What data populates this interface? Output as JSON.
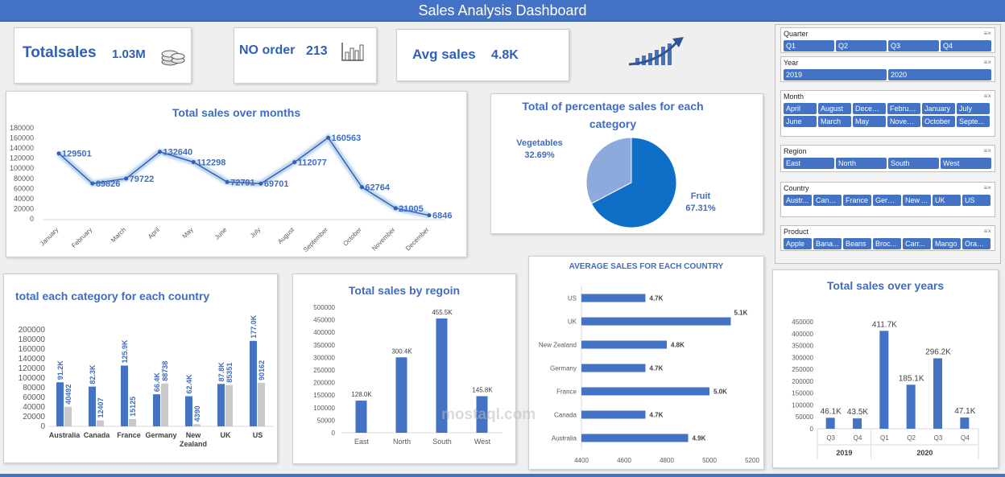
{
  "dashboard_title": "Sales Analysis Dashboard",
  "kpis": {
    "total_sales_label": "Totalsales",
    "total_sales_value": "1.03M",
    "orders_label": "NO order",
    "orders_value": "213",
    "avg_label": "Avg sales",
    "avg_value": "4.8K"
  },
  "icons": {
    "coins": "coins-icon",
    "bar_chart": "bar-chart-icon",
    "growth": "growth-arrow-icon"
  },
  "slicers": [
    {
      "title": "Quarter",
      "items": [
        "Q1",
        "Q2",
        "Q3",
        "Q4"
      ]
    },
    {
      "title": "Year",
      "items": [
        "2019",
        "2020"
      ]
    },
    {
      "title": "Month",
      "items": [
        "April",
        "August",
        "Decem...",
        "February",
        "January",
        "July",
        "June",
        "March",
        "May",
        "Novem...",
        "October",
        "Septe..."
      ]
    },
    {
      "title": "Region",
      "items": [
        "East",
        "North",
        "South",
        "West"
      ]
    },
    {
      "title": "Country",
      "items": [
        "Austr...",
        "Cana...",
        "France",
        "Germ...",
        "New ...",
        "UK",
        "US"
      ]
    },
    {
      "title": "Product",
      "items": [
        "Apple",
        "Bana...",
        "Beans",
        "Broc...",
        "Carr...",
        "Mango",
        "Orange"
      ]
    }
  ],
  "watermark": "mostaql.com",
  "chart_data": [
    {
      "id": "months",
      "type": "line",
      "title": "Total sales  over months",
      "categories": [
        "January",
        "February",
        "March",
        "April",
        "May",
        "June",
        "July",
        "August",
        "September",
        "October",
        "November",
        "December"
      ],
      "values": [
        129501,
        69826,
        79722,
        132640,
        112298,
        72791,
        69701,
        112077,
        160563,
        62764,
        21005,
        6846
      ],
      "yticks": [
        "0",
        "20000",
        "40000",
        "60000",
        "80000",
        "100000",
        "120000",
        "140000",
        "160000",
        "180000"
      ],
      "ylim": [
        0,
        180000
      ]
    },
    {
      "id": "category_pie",
      "type": "pie",
      "title": "Total of percentage sales for each category",
      "slices": [
        {
          "name": "Fruit",
          "value": 67.31,
          "label": "67.31%",
          "color": "#0f6fc6"
        },
        {
          "name": "Vegetables",
          "value": 32.69,
          "label": "32.69%",
          "color": "#8ea9db"
        }
      ]
    },
    {
      "id": "country_category",
      "type": "bar",
      "title": "total each  category for each country",
      "categories": [
        "Australia",
        "Canada",
        "France",
        "Germany",
        "New Zealand",
        "UK",
        "US"
      ],
      "series": [
        {
          "values": [
            91200,
            82300,
            125900,
            66400,
            62400,
            87800,
            177000
          ],
          "labels": [
            "91.2K",
            "82.3K",
            "125.9K",
            "66.4K",
            "62.4K",
            "87.8K",
            "177.0K"
          ],
          "color": "#4472c4"
        },
        {
          "values": [
            40492,
            12407,
            15125,
            88738,
            4390,
            85351,
            90162
          ],
          "labels": [
            "40492",
            "12407",
            "15125",
            "88738",
            "4390",
            "85351",
            "90162"
          ],
          "color": "#c9c9c9"
        }
      ],
      "yticks": [
        "0",
        "20000",
        "40000",
        "60000",
        "80000",
        "100000",
        "120000",
        "140000",
        "160000",
        "180000",
        "200000"
      ],
      "ylim": [
        0,
        200000
      ]
    },
    {
      "id": "region",
      "type": "bar",
      "title": "Total sales  by regoin",
      "categories": [
        "East",
        "North",
        "South",
        "West"
      ],
      "values": [
        128000,
        300400,
        455500,
        145800
      ],
      "labels": [
        "128.0K",
        "300.4K",
        "455.5K",
        "145.8K"
      ],
      "yticks": [
        "0",
        "50000",
        "100000",
        "150000",
        "200000",
        "250000",
        "300000",
        "350000",
        "400000",
        "450000",
        "500000"
      ],
      "ylim": [
        0,
        500000
      ]
    },
    {
      "id": "avg_country",
      "type": "bar",
      "orientation": "horizontal",
      "title": "AVERAGE SALES FOR EACH COUNTRY",
      "categories": [
        "US",
        "UK",
        "New Zealand",
        "Germany",
        "France",
        "Canada",
        "Australia"
      ],
      "values": [
        4700,
        5100,
        4800,
        4700,
        5000,
        4700,
        4900
      ],
      "labels": [
        "4.7K",
        "5.1K",
        "4.8K",
        "4.7K",
        "5.0K",
        "4.7K",
        "4.9K"
      ],
      "xticks": [
        "4400",
        "4600",
        "4800",
        "5000",
        "5200"
      ],
      "xlim": [
        4400,
        5200
      ]
    },
    {
      "id": "years",
      "type": "bar",
      "title": "Total sales over years",
      "categories": [
        "Q3",
        "Q4",
        "Q1",
        "Q2",
        "Q3",
        "Q4"
      ],
      "groups": [
        {
          "name": "2019",
          "span": 2
        },
        {
          "name": "2020",
          "span": 4
        }
      ],
      "values": [
        46100,
        43500,
        411700,
        185100,
        296200,
        47100
      ],
      "labels": [
        "46.1K",
        "43.5K",
        "411.7K",
        "185.1K",
        "296.2K",
        "47.1K"
      ],
      "yticks": [
        "0",
        "50000",
        "100000",
        "150000",
        "200000",
        "250000",
        "300000",
        "350000",
        "400000",
        "450000"
      ],
      "ylim": [
        0,
        450000
      ]
    }
  ]
}
